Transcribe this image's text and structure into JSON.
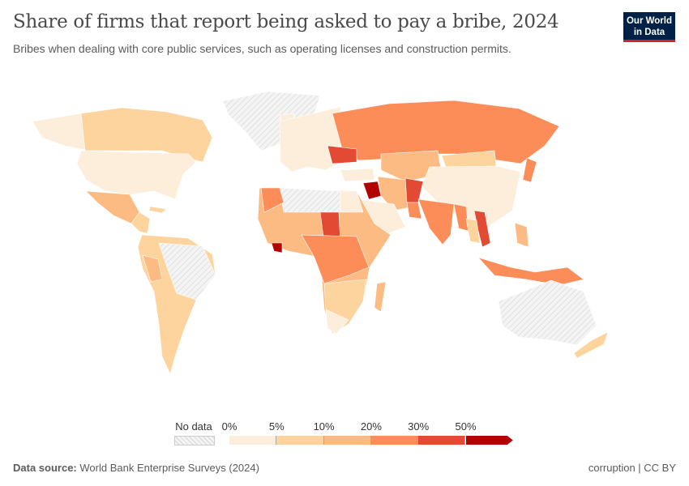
{
  "header": {
    "title": "Share of firms that report being asked to pay a bribe, 2024",
    "subtitle": "Bribes when dealing with core public services, such as operating licenses and construction permits.",
    "logo_text": "Our World in Data"
  },
  "legend": {
    "no_data_label": "No data",
    "bins": [
      {
        "label": "0%",
        "color": "#fdeedb"
      },
      {
        "label": "5%",
        "color": "#fdd49e"
      },
      {
        "label": "10%",
        "color": "#fdbb84"
      },
      {
        "label": "20%",
        "color": "#fc8d59"
      },
      {
        "label": "30%",
        "color": "#e34a33"
      },
      {
        "label": "50%",
        "color": "#b30000"
      }
    ]
  },
  "footer": {
    "source_label": "Data source:",
    "source_value": "World Bank Enterprise Surveys (2024)",
    "right": "corruption | CC BY"
  }
}
